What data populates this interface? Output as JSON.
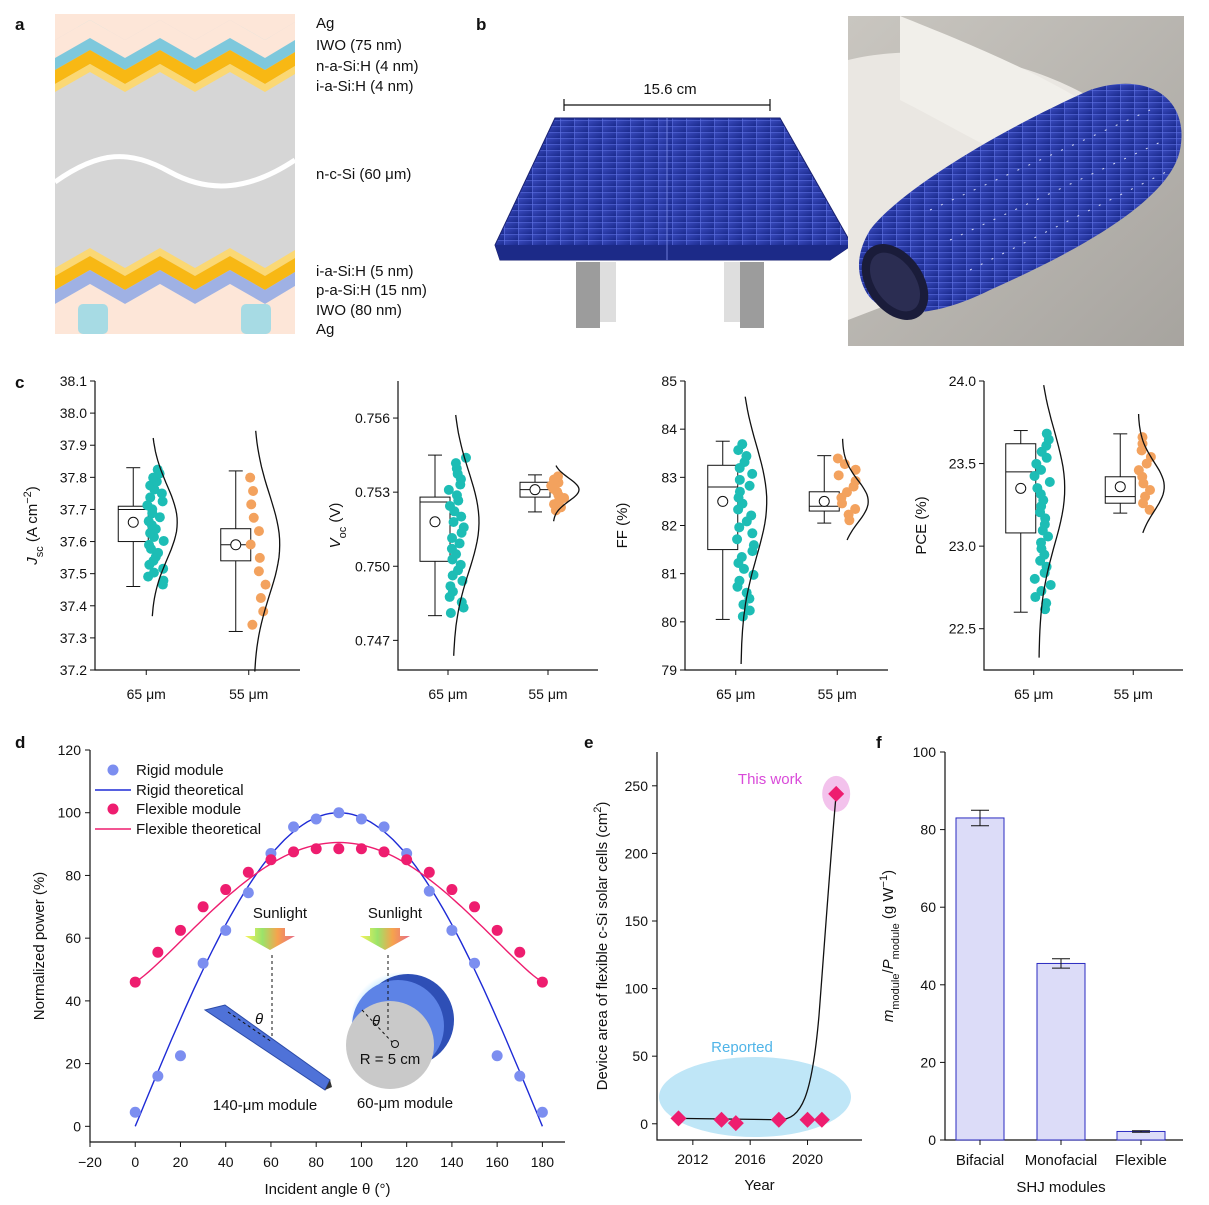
{
  "panels": {
    "a": "a",
    "b": "b",
    "c": "c",
    "d": "d",
    "e": "e",
    "f": "f"
  },
  "panel_a": {
    "layers_top": [
      "Ag",
      "IWO (75 nm)",
      "n-a-Si:H (4 nm)",
      "i-a-Si:H (4 nm)"
    ],
    "layer_mid": "n-c-Si (60 μm)",
    "layers_bottom": [
      "i-a-Si:H (5 nm)",
      "p-a-Si:H (15 nm)",
      "IWO (80 nm)",
      "Ag"
    ]
  },
  "panel_b": {
    "dimension": "15.6 cm"
  },
  "colors": {
    "teal": "#1dbdb5",
    "orange": "#f3a25e",
    "blue_pts": "#7c8ef0",
    "blue_line": "#1e2bd6",
    "pink": "#ee1d6f",
    "purple_bar": "#dcdcf8"
  },
  "chart_data": [
    {
      "type": "scatter",
      "panel": "c",
      "ylabel": "Jsc (A cm−2)",
      "ylim": [
        37.2,
        38.1
      ],
      "yticks": [
        "37.2",
        "37.3",
        "37.4",
        "37.5",
        "37.6",
        "37.7",
        "37.8",
        "37.9",
        "38.0",
        "38.1"
      ],
      "categories": [
        "65 μm",
        "55 μm"
      ],
      "box": [
        {
          "min": 37.46,
          "q1": 37.6,
          "median": 37.7,
          "q3": 37.71,
          "max": 37.83,
          "mean": 37.66
        },
        {
          "min": 37.32,
          "q1": 37.54,
          "median": 37.59,
          "q3": 37.64,
          "max": 37.82,
          "mean": 37.59
        }
      ]
    },
    {
      "type": "scatter",
      "panel": "c",
      "ylabel": "Voc (V)",
      "ylim": [
        0.7458,
        0.7575
      ],
      "yticks": [
        "0.747",
        "0.750",
        "0.753",
        "0.756"
      ],
      "categories": [
        "65 μm",
        "55 μm"
      ],
      "box": [
        {
          "min": 0.748,
          "q1": 0.7502,
          "median": 0.7526,
          "q3": 0.7528,
          "max": 0.7545,
          "mean": 0.7518
        },
        {
          "min": 0.7522,
          "q1": 0.7528,
          "median": 0.7531,
          "q3": 0.7534,
          "max": 0.7537,
          "mean": 0.7531
        }
      ]
    },
    {
      "type": "scatter",
      "panel": "c",
      "ylabel": "FF (%)",
      "ylim": [
        79,
        85
      ],
      "yticks": [
        "79",
        "80",
        "81",
        "82",
        "83",
        "84",
        "85"
      ],
      "categories": [
        "65 μm",
        "55 μm"
      ],
      "box": [
        {
          "min": 80.05,
          "q1": 81.5,
          "median": 82.8,
          "q3": 83.25,
          "max": 83.75,
          "mean": 82.5
        },
        {
          "min": 82.05,
          "q1": 82.3,
          "median": 82.4,
          "q3": 82.7,
          "max": 83.45,
          "mean": 82.5
        }
      ]
    },
    {
      "type": "scatter",
      "panel": "c",
      "ylabel": "PCE (%)",
      "ylim": [
        22.25,
        24.0
      ],
      "yticks": [
        "22.5",
        "23.0",
        "23.5",
        "24.0"
      ],
      "categories": [
        "65 μm",
        "55 μm"
      ],
      "box": [
        {
          "min": 22.6,
          "q1": 23.08,
          "median": 23.45,
          "q3": 23.62,
          "max": 23.7,
          "mean": 23.35
        },
        {
          "min": 23.2,
          "q1": 23.26,
          "median": 23.3,
          "q3": 23.42,
          "max": 23.68,
          "mean": 23.36
        }
      ]
    },
    {
      "type": "line",
      "panel": "d",
      "xlabel": "Incident angle θ (°)",
      "ylabel": "Normalized power (%)",
      "xlim": [
        -20,
        190
      ],
      "ylim": [
        -5,
        120
      ],
      "xticks": [
        "−20",
        "0",
        "20",
        "40",
        "60",
        "80",
        "100",
        "120",
        "140",
        "160",
        "180"
      ],
      "yticks": [
        "0",
        "20",
        "40",
        "60",
        "80",
        "100",
        "120"
      ],
      "series": [
        {
          "name": "Rigid module",
          "x": [
            0,
            10,
            20,
            30,
            40,
            50,
            60,
            70,
            80,
            90,
            100,
            110,
            120,
            130,
            140,
            150,
            160,
            170,
            180
          ],
          "y": [
            4.5,
            16,
            22.5,
            52,
            62.5,
            74.5,
            87,
            95.5,
            98,
            100,
            98,
            95.5,
            87,
            75,
            62.5,
            52,
            22.5,
            16,
            4.5
          ]
        },
        {
          "name": "Rigid theoretical"
        },
        {
          "name": "Flexible module",
          "x": [
            0,
            10,
            20,
            30,
            40,
            50,
            60,
            70,
            80,
            90,
            100,
            110,
            120,
            130,
            140,
            150,
            160,
            170,
            180
          ],
          "y": [
            46,
            55.5,
            62.5,
            70,
            75.5,
            81,
            85,
            87.5,
            88.5,
            88.5,
            88.5,
            87.5,
            85,
            81,
            75.5,
            70,
            62.5,
            55.5,
            46
          ]
        },
        {
          "name": "Flexible theoretical"
        }
      ],
      "inset_labels": {
        "sun1": "Sunlight",
        "sun2": "Sunlight",
        "theta": "θ",
        "radius": "R = 5 cm",
        "m140": "140-μm module",
        "m60": "60-μm module"
      }
    },
    {
      "type": "scatter",
      "panel": "e",
      "xlabel": "Year",
      "ylabel": "Device area of flexible c-Si solar cells (cm2)",
      "xlim": [
        2009.5,
        2023.8
      ],
      "ylim": [
        -12,
        275
      ],
      "xticks": [
        "2012",
        "2016",
        "2020"
      ],
      "yticks": [
        "0",
        "50",
        "100",
        "150",
        "200",
        "250"
      ],
      "x": [
        2011,
        2014,
        2015,
        2018,
        2020,
        2021,
        2022
      ],
      "y": [
        4,
        3,
        0.5,
        3,
        3,
        3,
        244
      ],
      "annotations": {
        "this_work": "This work",
        "reported": "Reported"
      }
    },
    {
      "type": "bar",
      "panel": "f",
      "xlabel": "SHJ modules",
      "ylabel": "mmodule/Pmodule (g W−1)",
      "ylim": [
        0,
        100
      ],
      "yticks": [
        "0",
        "20",
        "40",
        "60",
        "80",
        "100"
      ],
      "categories": [
        "Bifacial",
        "Monofacial",
        "Flexible"
      ],
      "values": [
        83,
        45.5,
        2.2
      ],
      "errors": [
        2,
        1.2,
        0.2
      ]
    }
  ]
}
